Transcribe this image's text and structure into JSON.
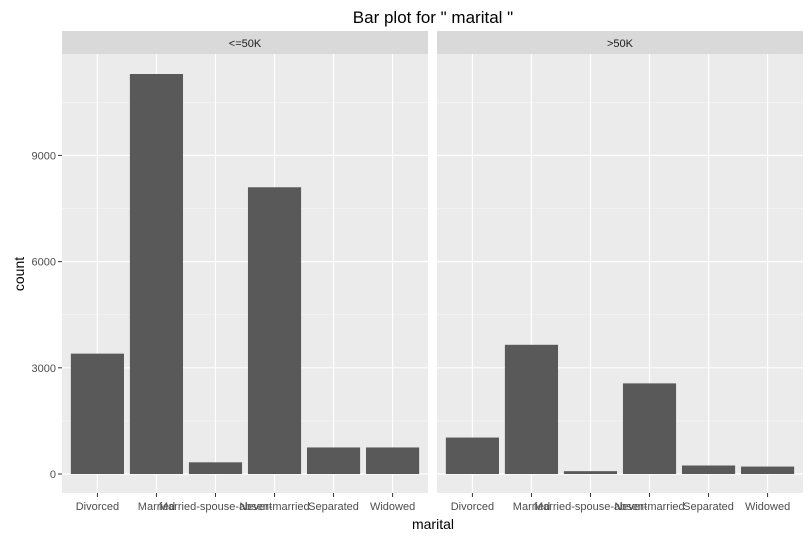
{
  "chart_data": {
    "type": "bar",
    "title": "Bar plot for \" marital \"",
    "xlabel": "marital",
    "ylabel": "count",
    "categories": [
      "Divorced",
      "Married",
      "Married-spouse-absent",
      "Never-married",
      "Separated",
      "Widowed"
    ],
    "facets": [
      {
        "label": "<=50K",
        "values": [
          3400,
          11300,
          330,
          8100,
          750,
          750
        ]
      },
      {
        "label": ">50K",
        "values": [
          1030,
          3650,
          80,
          2560,
          240,
          210
        ]
      }
    ],
    "ylim": [
      0,
      11300
    ],
    "yticks": [
      0,
      3000,
      6000,
      9000
    ],
    "grid": true,
    "legend": "none",
    "colors": {
      "bar": "#595959",
      "panel": "#ebebeb",
      "strip": "#d9d9d9",
      "grid_major": "#ffffff",
      "grid_minor": "#f5f5f5"
    }
  }
}
